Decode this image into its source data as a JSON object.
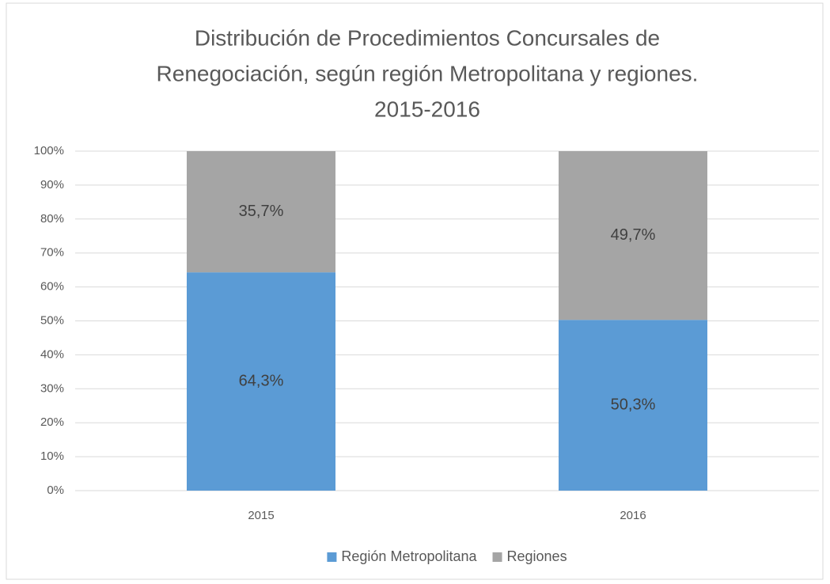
{
  "chart_data": {
    "type": "stacked_bar",
    "title": [
      "Distribución de Procedimientos Concursales de",
      "Renegociación, según región Metropolitana y regiones.",
      "2015-2016"
    ],
    "categories": [
      "2015",
      "2016"
    ],
    "series": [
      {
        "name": "Región Metropolitana",
        "color": "#5b9bd5",
        "values": [
          64.3,
          50.3
        ],
        "value_labels": [
          "64,3%",
          "50,3%"
        ]
      },
      {
        "name": "Regiones",
        "color": "#a5a5a5",
        "values": [
          35.7,
          49.7
        ],
        "value_labels": [
          "35,7%",
          "49,7%"
        ]
      }
    ],
    "ylim": [
      0,
      100
    ],
    "yticks": [
      {
        "value": 0,
        "label": "0%"
      },
      {
        "value": 10,
        "label": "10%"
      },
      {
        "value": 20,
        "label": "20%"
      },
      {
        "value": 30,
        "label": "30%"
      },
      {
        "value": 40,
        "label": "40%"
      },
      {
        "value": 50,
        "label": "50%"
      },
      {
        "value": 60,
        "label": "60%"
      },
      {
        "value": 70,
        "label": "70%"
      },
      {
        "value": 80,
        "label": "80%"
      },
      {
        "value": 90,
        "label": "90%"
      },
      {
        "value": 100,
        "label": "100%"
      }
    ],
    "grid": true
  }
}
